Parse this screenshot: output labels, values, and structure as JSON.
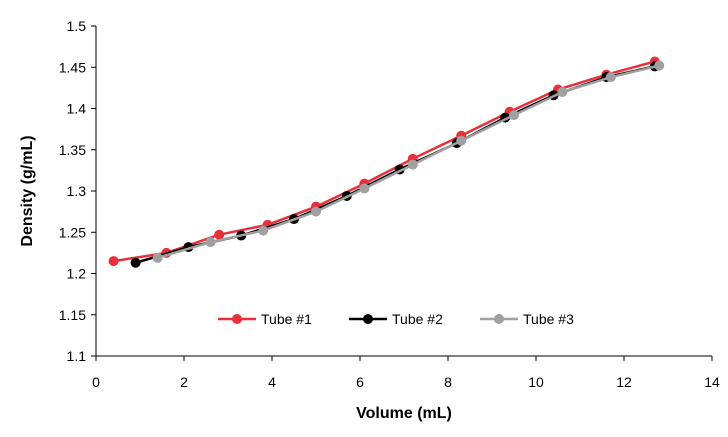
{
  "chart_data": {
    "type": "line",
    "title": "",
    "xlabel": "Volume (mL)",
    "ylabel": "Density (g/mL)",
    "xlim": [
      0,
      14
    ],
    "ylim": [
      1.1,
      1.5
    ],
    "x_ticks": [
      0,
      2,
      4,
      6,
      8,
      10,
      12,
      14
    ],
    "y_ticks": [
      1.1,
      1.15,
      1.2,
      1.25,
      1.3,
      1.35,
      1.4,
      1.45,
      1.5
    ],
    "y_tick_labels": [
      "1.1",
      "1.15",
      "1.2",
      "1.25",
      "1.3",
      "1.35",
      "1.4",
      "1.45",
      "1.5"
    ],
    "grid": false,
    "legend_position": "bottom-center",
    "series": [
      {
        "name": "Tube #1",
        "color": "#e8303a",
        "points": [
          [
            0.4,
            1.215
          ],
          [
            1.6,
            1.225
          ],
          [
            2.8,
            1.247
          ],
          [
            3.9,
            1.259
          ],
          [
            5.0,
            1.281
          ],
          [
            6.1,
            1.309
          ],
          [
            7.2,
            1.339
          ],
          [
            8.3,
            1.367
          ],
          [
            9.4,
            1.396
          ],
          [
            10.5,
            1.423
          ],
          [
            11.6,
            1.441
          ],
          [
            12.7,
            1.457
          ]
        ]
      },
      {
        "name": "Tube #2",
        "color": "#000000",
        "points": [
          [
            0.9,
            1.213
          ],
          [
            2.1,
            1.232
          ],
          [
            3.3,
            1.246
          ],
          [
            4.5,
            1.266
          ],
          [
            5.7,
            1.294
          ],
          [
            6.9,
            1.326
          ],
          [
            8.2,
            1.358
          ],
          [
            9.3,
            1.389
          ],
          [
            10.4,
            1.416
          ],
          [
            11.6,
            1.438
          ],
          [
            12.7,
            1.451
          ]
        ]
      },
      {
        "name": "Tube #3",
        "color": "#a0a0a0",
        "points": [
          [
            1.4,
            1.219
          ],
          [
            2.6,
            1.238
          ],
          [
            3.8,
            1.252
          ],
          [
            5.0,
            1.275
          ],
          [
            6.1,
            1.303
          ],
          [
            7.2,
            1.332
          ],
          [
            8.3,
            1.361
          ],
          [
            9.5,
            1.392
          ],
          [
            10.6,
            1.42
          ],
          [
            11.7,
            1.438
          ],
          [
            12.8,
            1.452
          ]
        ]
      }
    ]
  }
}
